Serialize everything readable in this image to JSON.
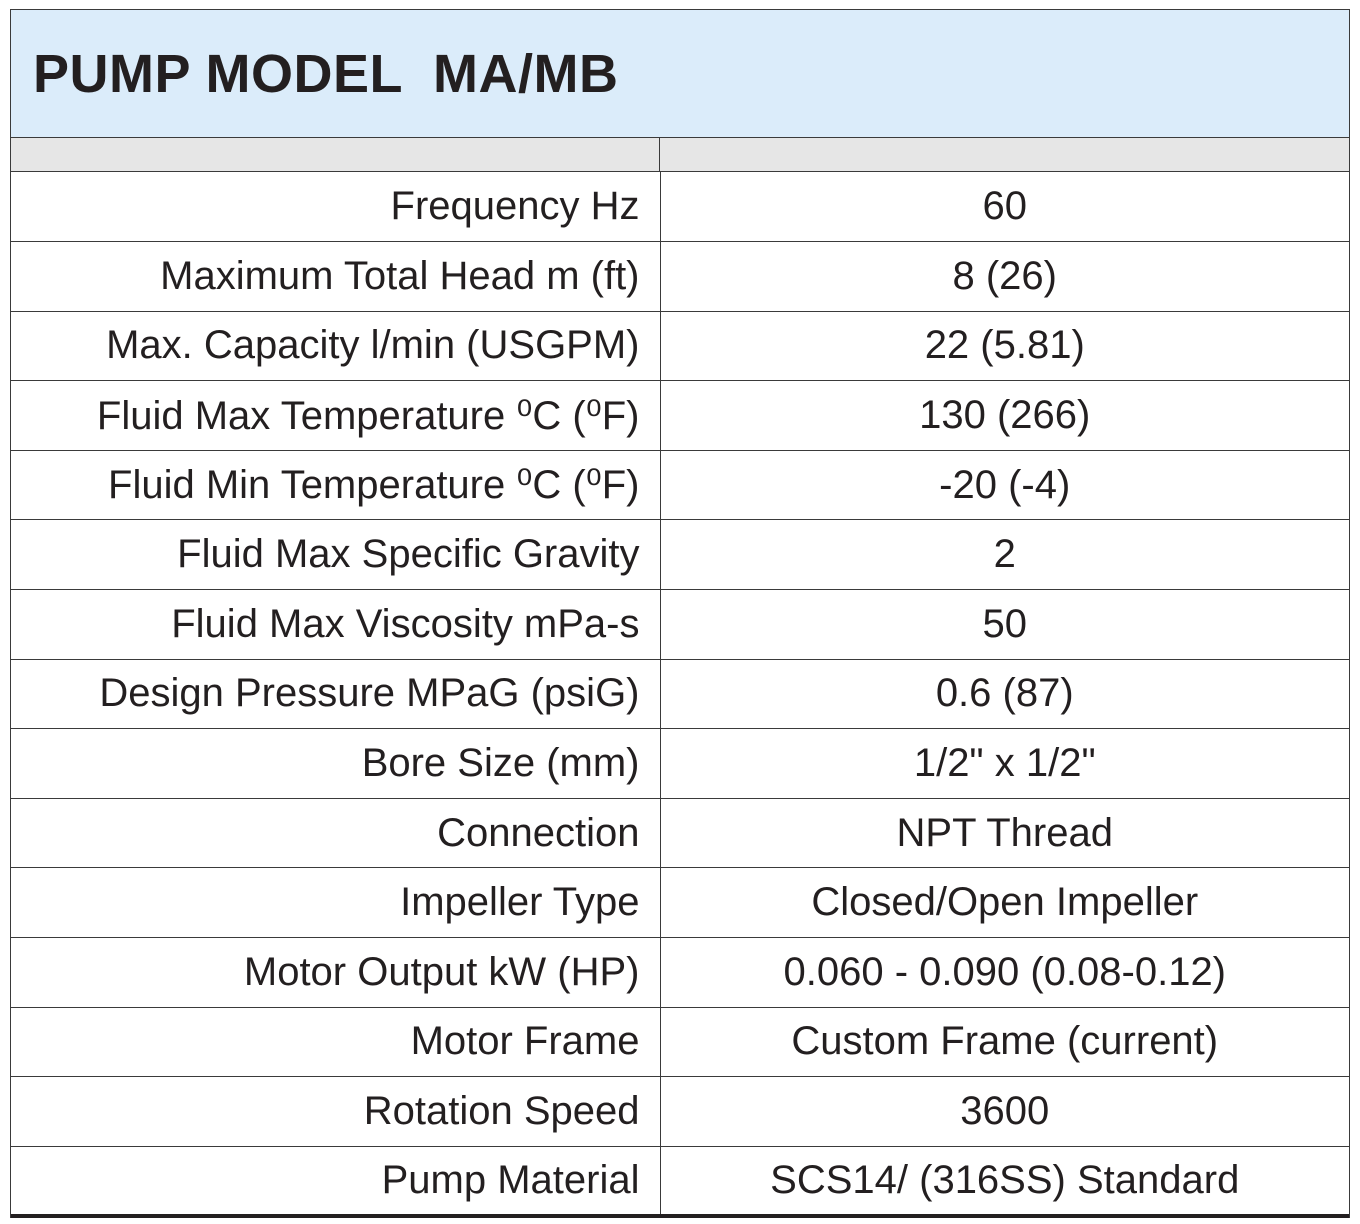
{
  "title": "PUMP MODEL  MA/MB",
  "specs": [
    {
      "label": "Frequency Hz",
      "value": "60"
    },
    {
      "label": "Maximum Total Head m (ft)",
      "value": "8 (26)"
    },
    {
      "label": "Max. Capacity l/min (USGPM)",
      "value": "22 (5.81)"
    },
    {
      "label": "Fluid Max Temperature ⁰C (⁰F)",
      "value": "130 (266)"
    },
    {
      "label": "Fluid Min Temperature  ⁰C (⁰F)",
      "value": "-20 (-4)"
    },
    {
      "label": "Fluid Max Specific Gravity",
      "value": "2"
    },
    {
      "label": "Fluid Max Viscosity mPa-s",
      "value": "50"
    },
    {
      "label": "Design Pressure MPaG (psiG)",
      "value": "0.6 (87)"
    },
    {
      "label": "Bore Size (mm)",
      "value": "1/2\" x 1/2\""
    },
    {
      "label": "Connection",
      "value": "NPT Thread"
    },
    {
      "label": "Impeller Type",
      "value": "Closed/Open Impeller"
    },
    {
      "label": "Motor Output kW (HP)",
      "value": "0.060 - 0.090  (0.08-0.12)"
    },
    {
      "label": "Motor Frame",
      "value": "Custom Frame (current)"
    },
    {
      "label": "Rotation Speed",
      "value": "3600"
    },
    {
      "label": "Pump Material",
      "value": "SCS14/ (316SS) Standard"
    }
  ],
  "colors": {
    "title_background": "#dbecfa",
    "header_row_background": "#e6e6e6",
    "text": "#231f20",
    "rule": "#3a3a3a"
  }
}
